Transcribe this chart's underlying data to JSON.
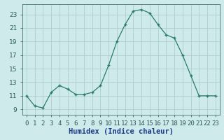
{
  "x": [
    0,
    1,
    2,
    3,
    4,
    5,
    6,
    7,
    8,
    9,
    10,
    11,
    12,
    13,
    14,
    15,
    16,
    17,
    18,
    19,
    20,
    21,
    22,
    23
  ],
  "y": [
    11,
    9.5,
    9.2,
    11.5,
    12.5,
    12,
    11.2,
    11.2,
    11.5,
    12.5,
    15.5,
    19,
    21.5,
    23.5,
    23.7,
    23.2,
    21.5,
    20,
    19.5,
    17,
    14,
    11,
    11,
    11
  ],
  "line_color": "#2a7a6e",
  "marker": "+",
  "marker_size": 3,
  "marker_lw": 1.0,
  "line_width": 0.9,
  "bg_color": "#ceeaea",
  "grid_color": "#aecfcf",
  "xlabel": "Humidex (Indice chaleur)",
  "xlim": [
    -0.5,
    23.5
  ],
  "ylim": [
    8.2,
    24.5
  ],
  "yticks": [
    9,
    11,
    13,
    15,
    17,
    19,
    21,
    23
  ],
  "xtick_labels": [
    "0",
    "1",
    "2",
    "3",
    "4",
    "5",
    "6",
    "7",
    "8",
    "9",
    "10",
    "11",
    "12",
    "13",
    "14",
    "15",
    "16",
    "17",
    "18",
    "19",
    "20",
    "21",
    "22",
    "23"
  ],
  "xlabel_fontsize": 7.5,
  "tick_fontsize": 6.5,
  "xlabel_color": "#1a3a8a",
  "tick_color": "#2a5a5a"
}
